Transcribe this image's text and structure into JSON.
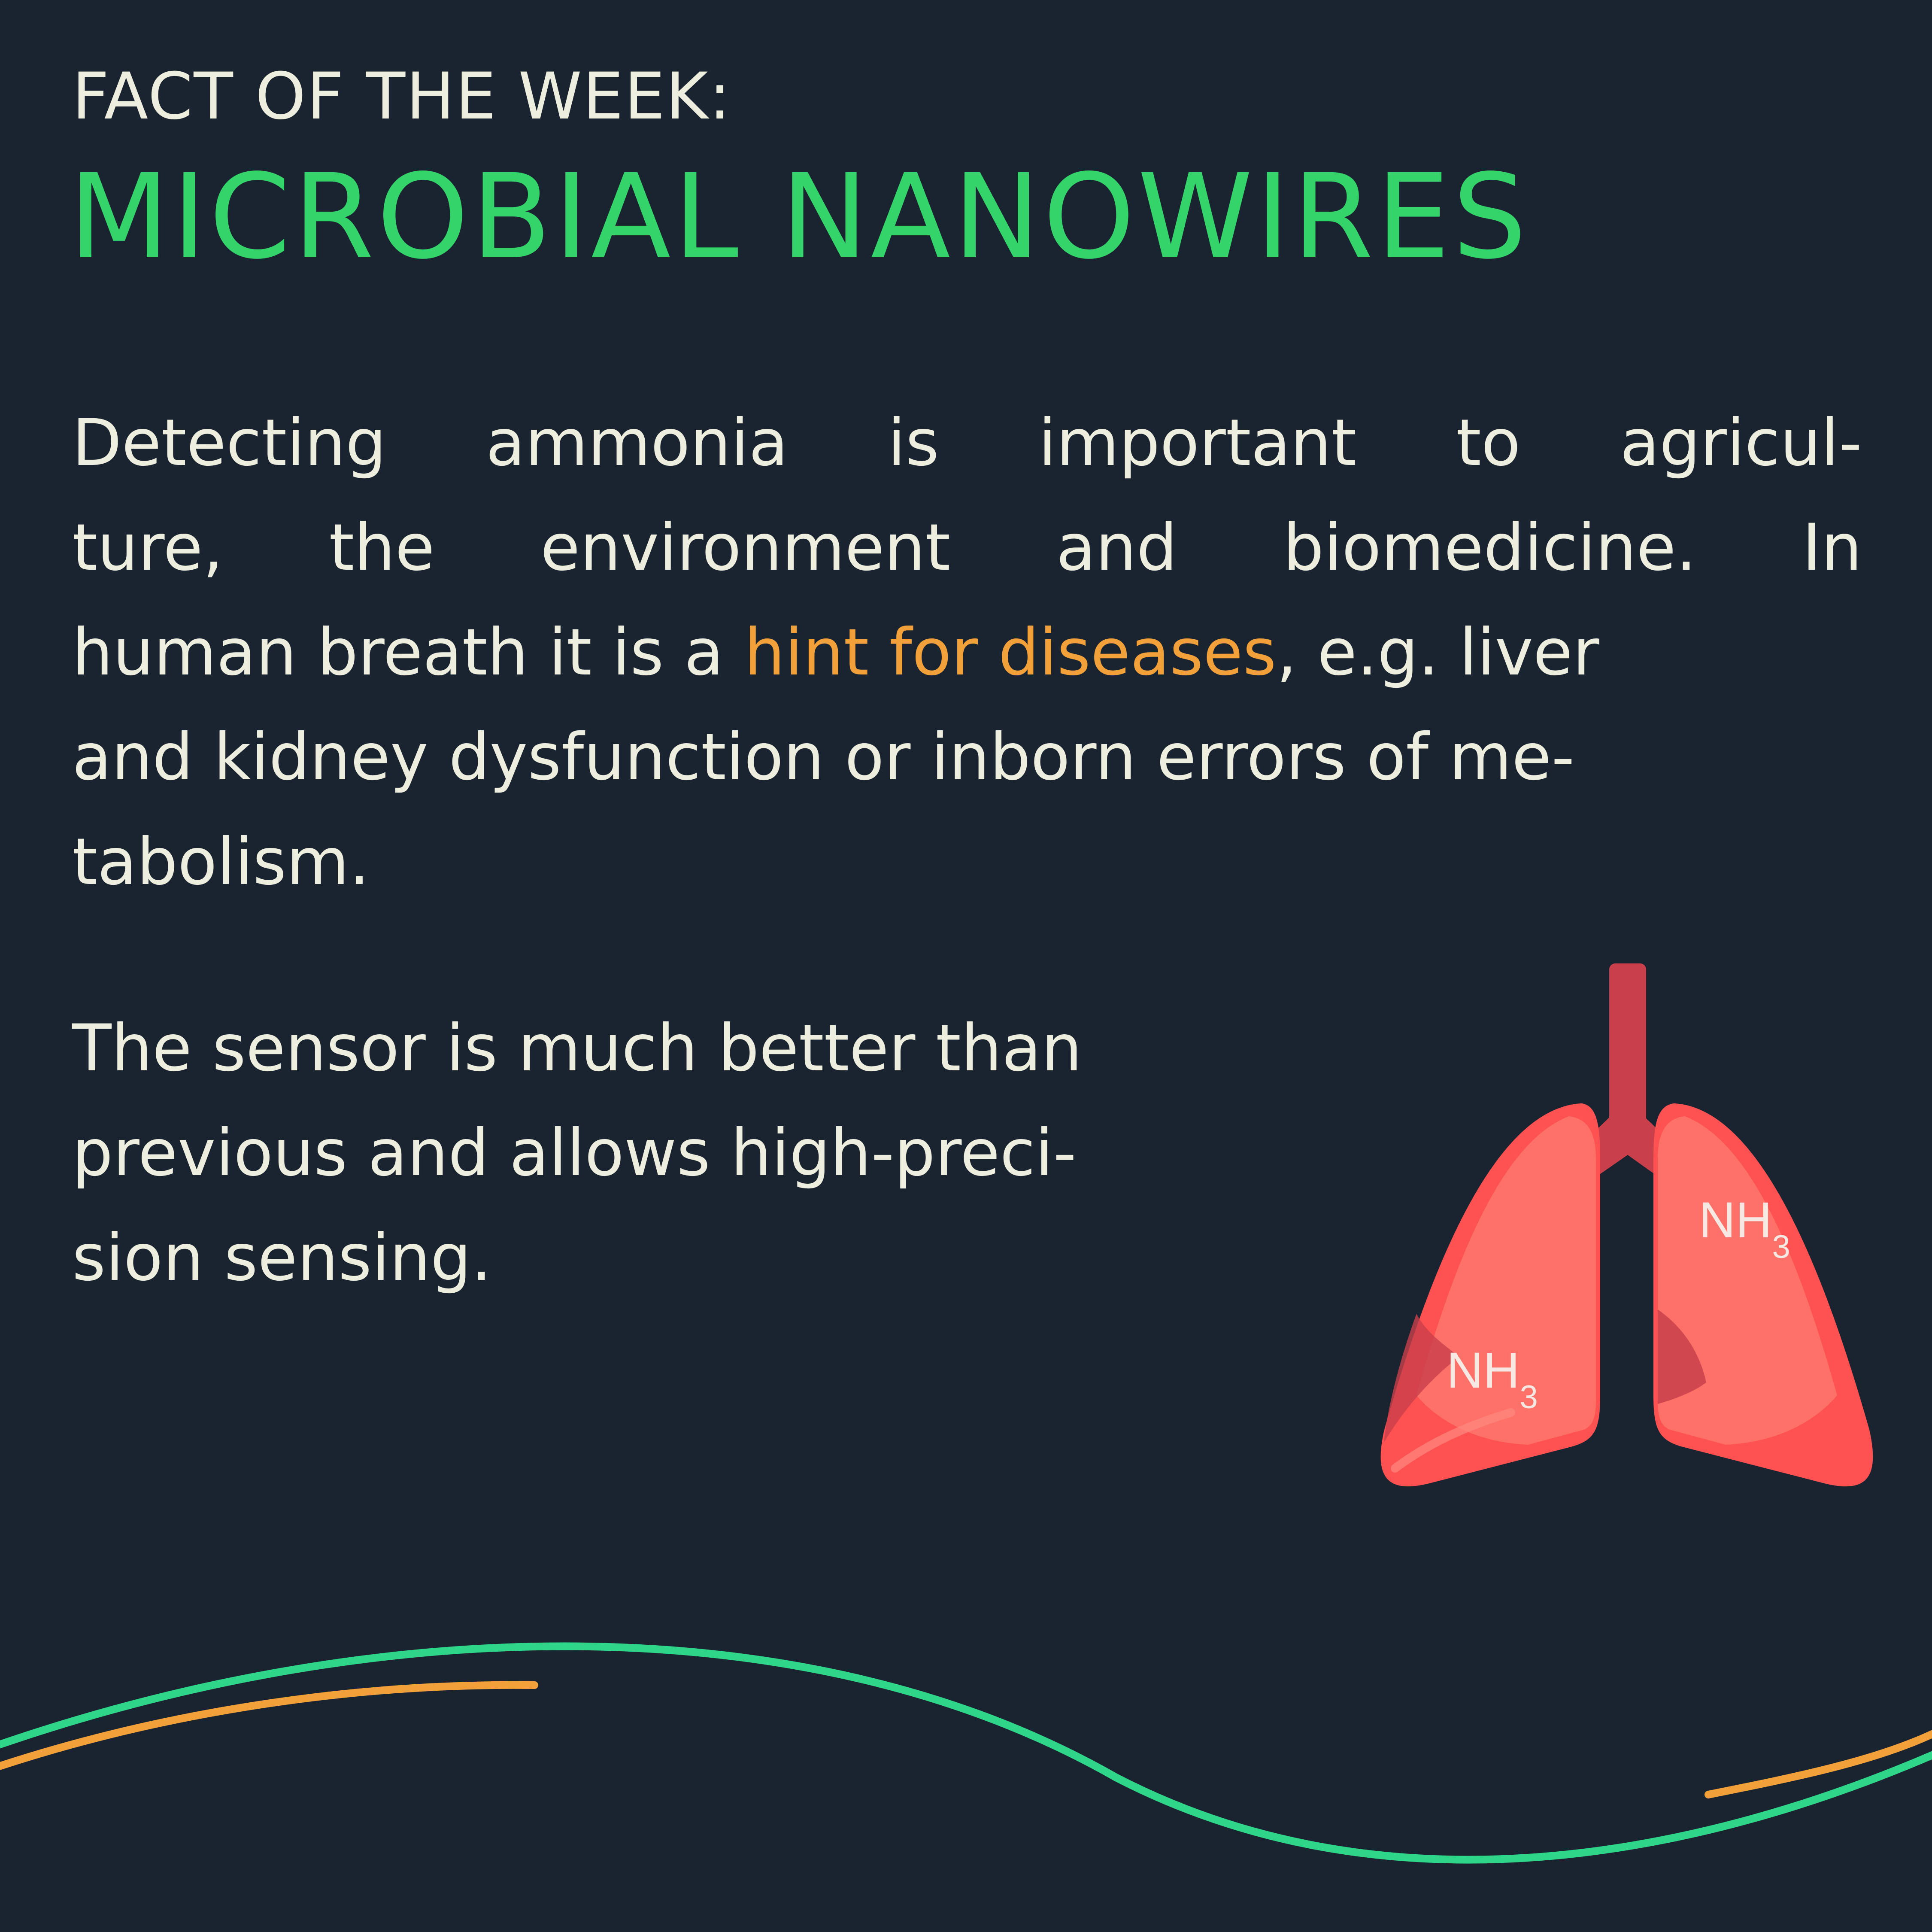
{
  "header": {
    "kicker": "FACT OF THE WEEK:",
    "title": "MICROBIAL NANOWIRES"
  },
  "paragraph1": {
    "line1_words": [
      "Detecting",
      "ammonia",
      "is",
      "important",
      "to",
      "agricul-"
    ],
    "line2_words": [
      "ture,",
      "the",
      "environment",
      "and",
      "biomedicine.",
      "In"
    ],
    "line3_before": "human breath it is a ",
    "line3_highlight": "hint for diseases",
    "line3_after": ", e.g. liver",
    "line4": "and kidney dysfunction or inborn errors of me-",
    "line5": "tabolism."
  },
  "paragraph2": {
    "line1": "The sensor is much better than",
    "line2": "previous and allows high-preci-",
    "line3": "sion sensing."
  },
  "illustration": {
    "label_main": "NH",
    "label_sub": "3"
  },
  "colors": {
    "background": "#1a2430",
    "text": "#eeeedf",
    "title": "#35d46b",
    "highlight": "#f2a03a",
    "wave_green": "#2fd68a",
    "wave_orange": "#f2a03a",
    "lung_light": "#fe7169",
    "lung_dark": "#fe5151",
    "trachea": "#c9404b"
  }
}
